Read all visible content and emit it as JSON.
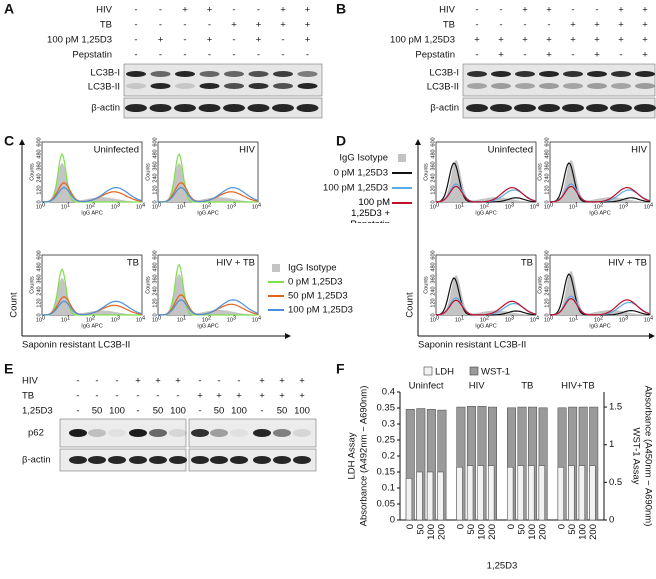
{
  "panel_A": {
    "label": "A",
    "rows": [
      {
        "name": "HIV",
        "signs": [
          "-",
          "-",
          "+",
          "+",
          "-",
          "-",
          "+",
          "+"
        ]
      },
      {
        "name": "TB",
        "signs": [
          "-",
          "-",
          "-",
          "-",
          "+",
          "+",
          "+",
          "+"
        ]
      },
      {
        "name": "100 pM 1,25D3",
        "signs": [
          "-",
          "+",
          "-",
          "+",
          "-",
          "+",
          "-",
          "+"
        ]
      },
      {
        "name": "Pepstatin",
        "signs": [
          "-",
          "-",
          "-",
          "-",
          "-",
          "-",
          "-",
          "-"
        ]
      }
    ],
    "blot_labels": [
      "LC3B-I",
      "LC3B-II",
      "β-actin"
    ]
  },
  "panel_B": {
    "label": "B",
    "rows": [
      {
        "name": "HIV",
        "signs": [
          "-",
          "-",
          "+",
          "+",
          "-",
          "-",
          "+",
          "+"
        ]
      },
      {
        "name": "TB",
        "signs": [
          "-",
          "-",
          "-",
          "-",
          "+",
          "+",
          "+",
          "+"
        ]
      },
      {
        "name": "100 pM 1,25D3",
        "signs": [
          "+",
          "+",
          "+",
          "+",
          "+",
          "+",
          "+",
          "+"
        ]
      },
      {
        "name": "Pepstatin",
        "signs": [
          "-",
          "+",
          "-",
          "+",
          "-",
          "+",
          "-",
          "+"
        ]
      }
    ],
    "blot_labels": [
      "LC3B-I",
      "LC3B-II",
      "β-actin"
    ]
  },
  "histogram_axes": {
    "ylabel": "Counts",
    "xlabel": "IgG APC",
    "yticks": [
      "0",
      "120",
      "240",
      "360",
      "480",
      "600"
    ],
    "xticks": [
      {
        "base": "10",
        "exp": "0"
      },
      {
        "base": "10",
        "exp": "1"
      },
      {
        "base": "10",
        "exp": "2"
      },
      {
        "base": "10",
        "exp": "3"
      },
      {
        "base": "10",
        "exp": "4"
      }
    ]
  },
  "panel_C": {
    "label": "C",
    "plots": [
      "Uninfected",
      "HIV",
      "TB",
      "HIV + TB"
    ],
    "legend": [
      {
        "name": "IgG Isotype",
        "color": "#c4c4c4"
      },
      {
        "name": "0 pM 1,25D3",
        "color": "#7ee04c"
      },
      {
        "name": "50 pM 1,25D3",
        "color": "#e8621c"
      },
      {
        "name": "100 pM 1,25D3",
        "color": "#4a90dc"
      }
    ],
    "ylabel": "Count",
    "xlabel": "Saponin resistant LC3B-II"
  },
  "panel_D": {
    "label": "D",
    "plots": [
      "Uninfected",
      "HIV",
      "TB",
      "HIV + TB"
    ],
    "legend": [
      {
        "name": "IgG Isotype",
        "color": "#c4c4c4"
      },
      {
        "name": "0 pM 1,25D3",
        "color": "#111111"
      },
      {
        "name": "100 pM 1,25D3",
        "color": "#5aaae6"
      },
      {
        "name": "100 pM 1,25D3 + Pepstatin",
        "color": "#c0102a"
      }
    ],
    "ylabel": "Count",
    "xlabel": "Saponin resistant LC3B-II"
  },
  "panel_E": {
    "label": "E",
    "row_names": [
      "HIV",
      "TB",
      "1,25D3"
    ],
    "blocks": [
      [
        [
          "-",
          "-",
          "-",
          "+",
          "+",
          "+"
        ],
        [
          "-",
          "-",
          "-",
          "-",
          "-",
          "-"
        ],
        [
          "-",
          "50",
          "100",
          "-",
          "50",
          "100"
        ]
      ],
      [
        [
          "-",
          "-",
          "-",
          "+",
          "+",
          "+"
        ],
        [
          "+",
          "+",
          "+",
          "+",
          "+",
          "+"
        ],
        [
          "-",
          "50",
          "100",
          "-",
          "50",
          "100"
        ]
      ]
    ],
    "blot_labels": [
      "p62",
      "β-actin"
    ]
  },
  "chart_data": {
    "type": "bar",
    "label": "F",
    "categories": [
      "0",
      "50",
      "100",
      "200",
      "0",
      "50",
      "100",
      "200",
      "0",
      "50",
      "100",
      "200",
      "0",
      "50",
      "100",
      "200"
    ],
    "groups": [
      "Uninfect",
      "HIV",
      "TB",
      "HIV+TB"
    ],
    "xlabel": "1,25D3",
    "ylabel": [
      "LDH Assay",
      "Absorbance (A492nm − A690nm)"
    ],
    "y2label": [
      "WST-1 Assay",
      "Absorbance (A450nm − A690nm)"
    ],
    "ylim": [
      0,
      0.4
    ],
    "yticks": [
      0,
      0.05,
      0.1,
      0.15,
      0.2,
      0.25,
      0.3,
      0.35,
      0.4
    ],
    "y2lim": [
      0,
      1.7
    ],
    "y2ticks": [
      0,
      0.5,
      1,
      1.5
    ],
    "series": [
      {
        "name": "LDH",
        "color": "#f2f2f2",
        "values": [
          0.13,
          0.15,
          0.15,
          0.15,
          0.165,
          0.17,
          0.17,
          0.17,
          0.165,
          0.17,
          0.17,
          0.17,
          0.165,
          0.17,
          0.17,
          0.17
        ]
      },
      {
        "name": "WST-1",
        "color": "#9a9a9a",
        "axis": "y2",
        "values": [
          1.47,
          1.48,
          1.47,
          1.46,
          1.5,
          1.51,
          1.51,
          1.5,
          1.49,
          1.5,
          1.5,
          1.49,
          1.49,
          1.5,
          1.5,
          1.5
        ]
      }
    ]
  }
}
